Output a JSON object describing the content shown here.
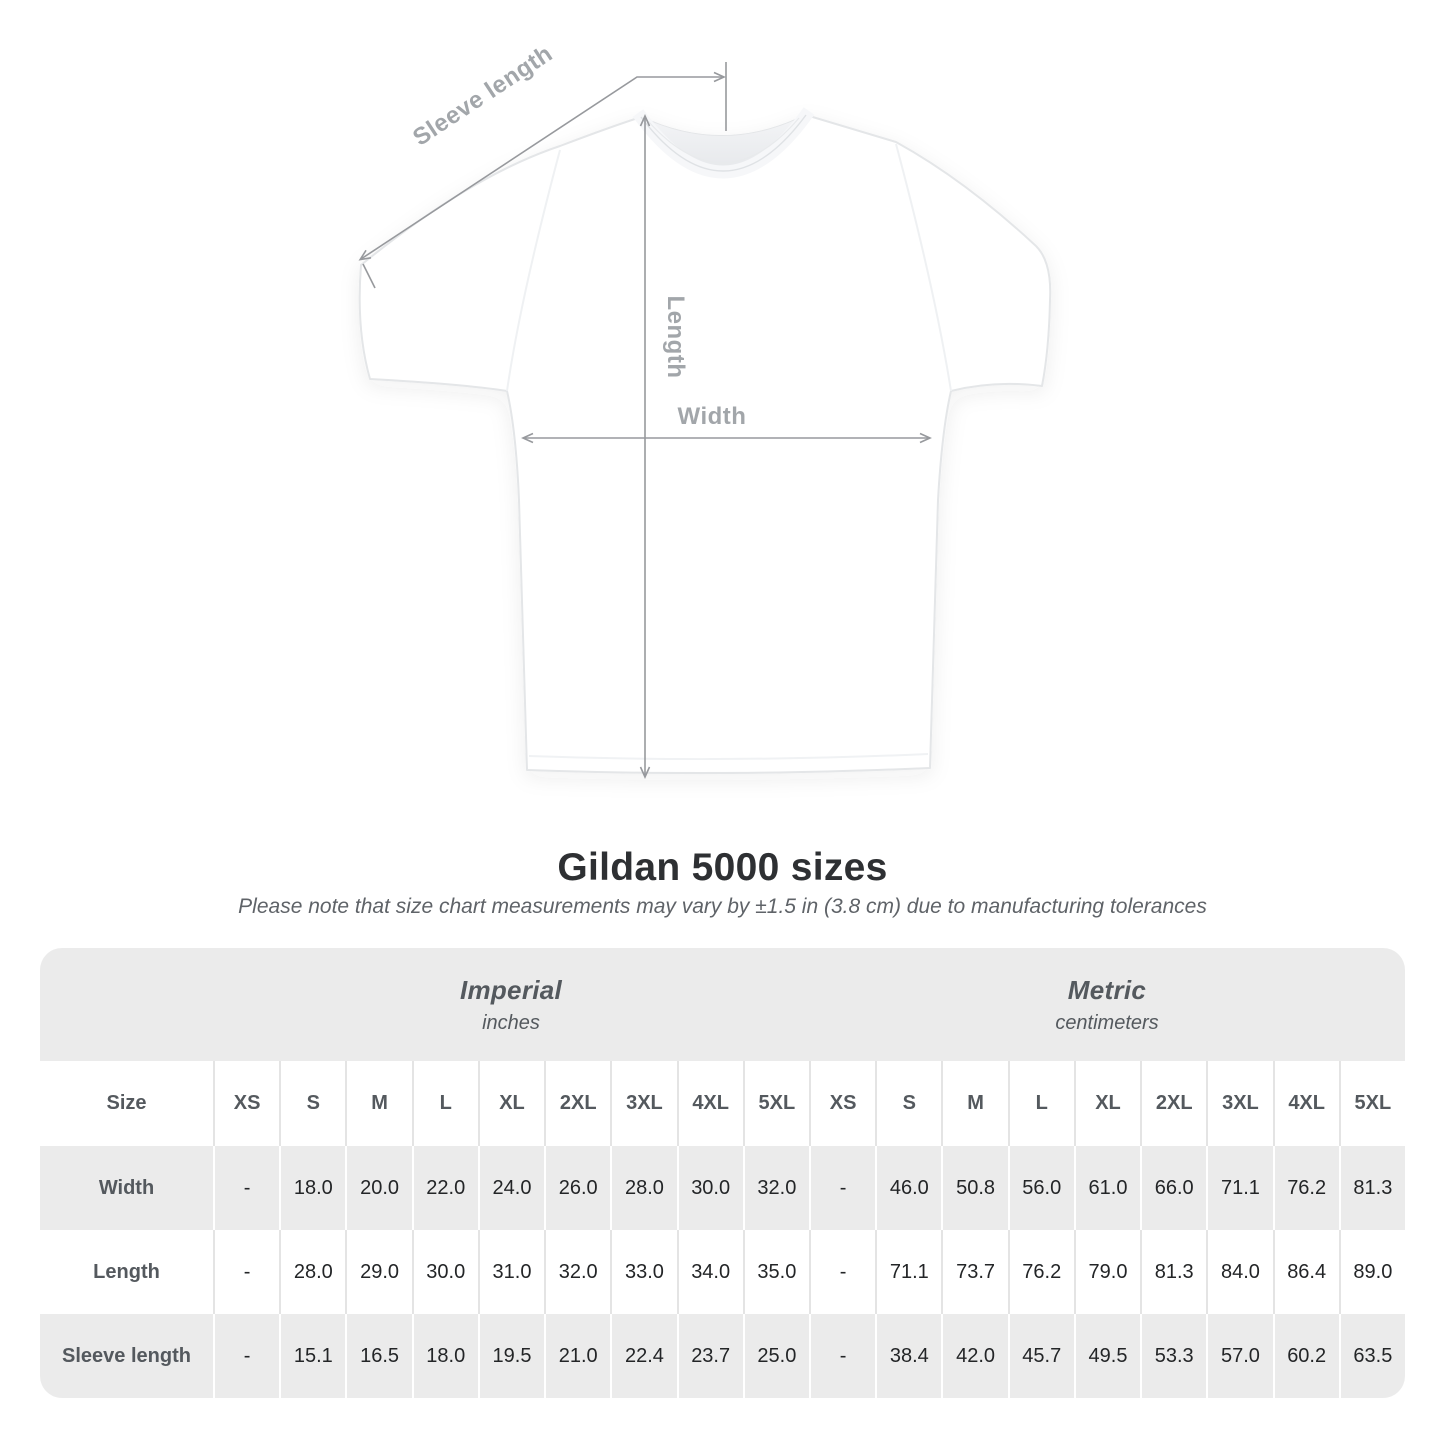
{
  "title": "Gildan 5000 sizes",
  "subtitle": "Please note that size chart measurements may vary by ±1.5 in (3.8 cm) due to manufacturing tolerances",
  "diagram": {
    "labels": {
      "sleeve": "Sleeve length",
      "length": "Length",
      "width": "Width"
    },
    "arrow_color": "#97999d",
    "label_color": "#a2a6aa",
    "shirt_fill": "#ffffff",
    "shirt_outline": "#e4e6e8"
  },
  "size_table": {
    "corner_label": "Size",
    "groups": [
      {
        "label": "Imperial",
        "unit": "inches"
      },
      {
        "label": "Metric",
        "unit": "centimeters"
      }
    ],
    "sizes": [
      "XS",
      "S",
      "M",
      "L",
      "XL",
      "2XL",
      "3XL",
      "4XL",
      "5XL"
    ],
    "rows": [
      {
        "label": "Width",
        "imperial": [
          "-",
          "18.0",
          "20.0",
          "22.0",
          "24.0",
          "26.0",
          "28.0",
          "30.0",
          "32.0"
        ],
        "metric": [
          "-",
          "46.0",
          "50.8",
          "56.0",
          "61.0",
          "66.0",
          "71.1",
          "76.2",
          "81.3"
        ]
      },
      {
        "label": "Length",
        "imperial": [
          "-",
          "28.0",
          "29.0",
          "30.0",
          "31.0",
          "32.0",
          "33.0",
          "34.0",
          "35.0"
        ],
        "metric": [
          "-",
          "71.1",
          "73.7",
          "76.2",
          "79.0",
          "81.3",
          "84.0",
          "86.4",
          "89.0"
        ]
      },
      {
        "label": "Sleeve length",
        "imperial": [
          "-",
          "15.1",
          "16.5",
          "18.0",
          "19.5",
          "21.0",
          "22.4",
          "23.7",
          "25.0"
        ],
        "metric": [
          "-",
          "38.4",
          "42.0",
          "45.7",
          "49.5",
          "53.3",
          "57.0",
          "60.2",
          "63.5"
        ]
      }
    ],
    "colors": {
      "stripe": "#ebebeb",
      "separator_on_white": "#e4e4e4",
      "separator_on_gray": "#ffffff"
    }
  },
  "chart_data": {
    "type": "table",
    "title": "Gildan 5000 sizes",
    "note": "Please note that size chart measurements may vary by ±1.5 in (3.8 cm) due to manufacturing tolerances",
    "column_groups": [
      "Imperial (inches)",
      "Metric (centimeters)"
    ],
    "columns": [
      "XS",
      "S",
      "M",
      "L",
      "XL",
      "2XL",
      "3XL",
      "4XL",
      "5XL"
    ],
    "rows": [
      {
        "measure": "Width",
        "imperial_in": [
          null,
          18.0,
          20.0,
          22.0,
          24.0,
          26.0,
          28.0,
          30.0,
          32.0
        ],
        "metric_cm": [
          null,
          46.0,
          50.8,
          56.0,
          61.0,
          66.0,
          71.1,
          76.2,
          81.3
        ]
      },
      {
        "measure": "Length",
        "imperial_in": [
          null,
          28.0,
          29.0,
          30.0,
          31.0,
          32.0,
          33.0,
          34.0,
          35.0
        ],
        "metric_cm": [
          null,
          71.1,
          73.7,
          76.2,
          79.0,
          81.3,
          84.0,
          86.4,
          89.0
        ]
      },
      {
        "measure": "Sleeve length",
        "imperial_in": [
          null,
          15.1,
          16.5,
          18.0,
          19.5,
          21.0,
          22.4,
          23.7,
          25.0
        ],
        "metric_cm": [
          null,
          38.4,
          42.0,
          45.7,
          49.5,
          53.3,
          57.0,
          60.2,
          63.5
        ]
      }
    ]
  }
}
